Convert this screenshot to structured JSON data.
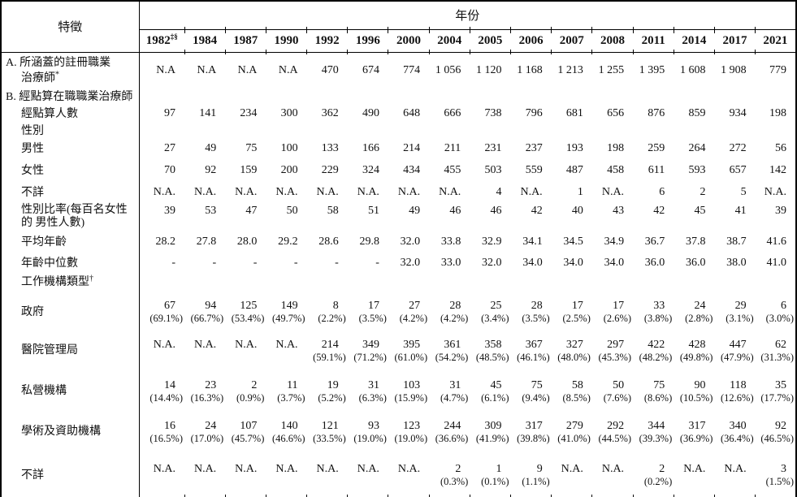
{
  "colors": {
    "text": "#111111",
    "border": "#000000",
    "background": "#ffffff"
  },
  "header": {
    "characteristic_label": "特徵",
    "year_label": "年份",
    "years": [
      {
        "text": "1982",
        "sup": "‡§"
      },
      {
        "text": "1984"
      },
      {
        "text": "1987"
      },
      {
        "text": "1990"
      },
      {
        "text": "1992"
      },
      {
        "text": "1996"
      },
      {
        "text": "2000"
      },
      {
        "text": "2004"
      },
      {
        "text": "2005"
      },
      {
        "text": "2006"
      },
      {
        "text": "2007"
      },
      {
        "text": "2008"
      },
      {
        "text": "2011"
      },
      {
        "text": "2014"
      },
      {
        "text": "2017"
      },
      {
        "text": "2021"
      }
    ]
  },
  "rows": [
    {
      "id": "registered-ot",
      "kind": "middle",
      "label_lines": [
        {
          "text": "A. 所涵蓋的註冊職業",
          "indent": false
        },
        {
          "text": "治療師",
          "sup": "*",
          "indent": true
        }
      ],
      "values": [
        "N.A",
        "N.A",
        "N.A",
        "N.A",
        "470",
        "674",
        "774",
        "1 056",
        "1 120",
        "1 168",
        "1 213",
        "1 255",
        "1 395",
        "1 608",
        "1 908",
        "779"
      ]
    },
    {
      "id": "enumerated-ot-section",
      "kind": "section",
      "label_lines": [
        {
          "text": "B. 經點算在職職業治療師",
          "indent": false
        }
      ]
    },
    {
      "id": "enumerated-count",
      "kind": "plain",
      "label_lines": [
        {
          "text": "經點算人數",
          "indent": true
        }
      ],
      "values": [
        "97",
        "141",
        "234",
        "300",
        "362",
        "490",
        "648",
        "666",
        "738",
        "796",
        "681",
        "656",
        "876",
        "859",
        "934",
        "198"
      ]
    },
    {
      "id": "sex-section",
      "kind": "section",
      "label_lines": [
        {
          "text": "性別",
          "indent": true
        }
      ]
    },
    {
      "id": "male",
      "kind": "plain",
      "label_lines": [
        {
          "text": "男性",
          "indent": true
        }
      ],
      "values": [
        "27",
        "49",
        "75",
        "100",
        "133",
        "166",
        "214",
        "211",
        "231",
        "237",
        "193",
        "198",
        "259",
        "264",
        "272",
        "56"
      ]
    },
    {
      "id": "female",
      "kind": "plain",
      "label_lines": [
        {
          "text": "女性",
          "indent": true
        }
      ],
      "values": [
        "70",
        "92",
        "159",
        "200",
        "229",
        "324",
        "434",
        "455",
        "503",
        "559",
        "487",
        "458",
        "611",
        "593",
        "657",
        "142"
      ]
    },
    {
      "id": "sex-unknown",
      "kind": "plain",
      "label_lines": [
        {
          "text": "不詳",
          "indent": true
        }
      ],
      "values": [
        "N.A.",
        "N.A.",
        "N.A.",
        "N.A.",
        "N.A.",
        "N.A.",
        "N.A.",
        "N.A.",
        "4",
        "N.A.",
        "1",
        "N.A.",
        "6",
        "2",
        "5",
        "N.A."
      ]
    },
    {
      "id": "sex-ratio",
      "kind": "plain",
      "tight": true,
      "label_lines": [
        {
          "text": "性別比率(每百名女性",
          "indent": true
        },
        {
          "text": "的 男性人數)",
          "indent": true
        }
      ],
      "values": [
        "39",
        "53",
        "47",
        "50",
        "58",
        "51",
        "49",
        "46",
        "46",
        "42",
        "40",
        "43",
        "42",
        "45",
        "41",
        "39"
      ]
    },
    {
      "id": "mean-age",
      "kind": "plain",
      "label_lines": [
        {
          "text": "平均年齡",
          "indent": true
        }
      ],
      "values": [
        "28.2",
        "27.8",
        "28.0",
        "29.2",
        "28.6",
        "29.8",
        "32.0",
        "33.8",
        "32.9",
        "34.1",
        "34.5",
        "34.9",
        "36.7",
        "37.8",
        "38.7",
        "41.6"
      ]
    },
    {
      "id": "median-age",
      "kind": "plain",
      "label_lines": [
        {
          "text": "年齡中位數",
          "indent": true
        }
      ],
      "values": [
        "-",
        "-",
        "-",
        "-",
        "-",
        "-",
        "32.0",
        "33.0",
        "32.0",
        "34.0",
        "34.0",
        "34.0",
        "36.0",
        "36.0",
        "38.0",
        "41.0"
      ]
    },
    {
      "id": "org-type-section",
      "kind": "section",
      "label_lines": [
        {
          "text": "工作機構類型",
          "sup": "†",
          "indent": true
        }
      ]
    },
    {
      "id": "government",
      "kind": "pct",
      "label_lines": [
        {
          "text": "政府",
          "indent": true
        }
      ],
      "values": [
        {
          "n": "67",
          "p": "(69.1%)"
        },
        {
          "n": "94",
          "p": "(66.7%)"
        },
        {
          "n": "125",
          "p": "(53.4%)"
        },
        {
          "n": "149",
          "p": "(49.7%)"
        },
        {
          "n": "8",
          "p": "(2.2%)"
        },
        {
          "n": "17",
          "p": "(3.5%)"
        },
        {
          "n": "27",
          "p": "(4.2%)"
        },
        {
          "n": "28",
          "p": "(4.2%)"
        },
        {
          "n": "25",
          "p": "(3.4%)"
        },
        {
          "n": "28",
          "p": "(3.5%)"
        },
        {
          "n": "17",
          "p": "(2.5%)"
        },
        {
          "n": "17",
          "p": "(2.6%)"
        },
        {
          "n": "33",
          "p": "(3.8%)"
        },
        {
          "n": "24",
          "p": "(2.8%)"
        },
        {
          "n": "29",
          "p": "(3.1%)"
        },
        {
          "n": "6",
          "p": "(3.0%)"
        }
      ]
    },
    {
      "id": "hospital-authority",
      "kind": "pct",
      "label_lines": [
        {
          "text": "醫院管理局",
          "indent": true
        }
      ],
      "values": [
        {
          "n": "N.A."
        },
        {
          "n": "N.A."
        },
        {
          "n": "N.A."
        },
        {
          "n": "N.A."
        },
        {
          "n": "214",
          "p": "(59.1%)"
        },
        {
          "n": "349",
          "p": "(71.2%)"
        },
        {
          "n": "395",
          "p": "(61.0%)"
        },
        {
          "n": "361",
          "p": "(54.2%)"
        },
        {
          "n": "358",
          "p": "(48.5%)"
        },
        {
          "n": "367",
          "p": "(46.1%)"
        },
        {
          "n": "327",
          "p": "(48.0%)"
        },
        {
          "n": "297",
          "p": "(45.3%)"
        },
        {
          "n": "422",
          "p": "(48.2%)"
        },
        {
          "n": "428",
          "p": "(49.8%)"
        },
        {
          "n": "447",
          "p": "(47.9%)"
        },
        {
          "n": "62",
          "p": "(31.3%)"
        }
      ]
    },
    {
      "id": "private-sector",
      "kind": "pct",
      "label_lines": [
        {
          "text": "私營機構",
          "indent": true
        }
      ],
      "values": [
        {
          "n": "14",
          "p": "(14.4%)"
        },
        {
          "n": "23",
          "p": "(16.3%)"
        },
        {
          "n": "2",
          "p": "(0.9%)"
        },
        {
          "n": "11",
          "p": "(3.7%)"
        },
        {
          "n": "19",
          "p": "(5.2%)"
        },
        {
          "n": "31",
          "p": "(6.3%)"
        },
        {
          "n": "103",
          "p": "(15.9%)"
        },
        {
          "n": "31",
          "p": "(4.7%)"
        },
        {
          "n": "45",
          "p": "(6.1%)"
        },
        {
          "n": "75",
          "p": "(9.4%)"
        },
        {
          "n": "58",
          "p": "(8.5%)"
        },
        {
          "n": "50",
          "p": "(7.6%)"
        },
        {
          "n": "75",
          "p": "(8.6%)"
        },
        {
          "n": "90",
          "p": "(10.5%)"
        },
        {
          "n": "118",
          "p": "(12.6%)"
        },
        {
          "n": "35",
          "p": "(17.7%)"
        }
      ]
    },
    {
      "id": "academic-subvented",
      "kind": "pct",
      "label_lines": [
        {
          "text": "學術及資助機構",
          "indent": true
        }
      ],
      "values": [
        {
          "n": "16",
          "p": "(16.5%)"
        },
        {
          "n": "24",
          "p": "(17.0%)"
        },
        {
          "n": "107",
          "p": "(45.7%)"
        },
        {
          "n": "140",
          "p": "(46.6%)"
        },
        {
          "n": "121",
          "p": "(33.5%)"
        },
        {
          "n": "93",
          "p": "(19.0%)"
        },
        {
          "n": "123",
          "p": "(19.0%)"
        },
        {
          "n": "244",
          "p": "(36.6%)"
        },
        {
          "n": "309",
          "p": "(41.9%)"
        },
        {
          "n": "317",
          "p": "(39.8%)"
        },
        {
          "n": "279",
          "p": "(41.0%)"
        },
        {
          "n": "292",
          "p": "(44.5%)"
        },
        {
          "n": "344",
          "p": "(39.3%)"
        },
        {
          "n": "317",
          "p": "(36.9%)"
        },
        {
          "n": "340",
          "p": "(36.4%)"
        },
        {
          "n": "92",
          "p": "(46.5%)"
        }
      ]
    },
    {
      "id": "org-unknown",
      "kind": "pct",
      "label_lines": [
        {
          "text": "不詳",
          "indent": true
        }
      ],
      "values": [
        {
          "n": "N.A."
        },
        {
          "n": "N.A."
        },
        {
          "n": "N.A."
        },
        {
          "n": "N.A."
        },
        {
          "n": "N.A."
        },
        {
          "n": "N.A."
        },
        {
          "n": "N.A."
        },
        {
          "n": "2",
          "p": "(0.3%)"
        },
        {
          "n": "1",
          "p": "(0.1%)"
        },
        {
          "n": "9",
          "p": "(1.1%)"
        },
        {
          "n": "N.A."
        },
        {
          "n": "N.A."
        },
        {
          "n": "2",
          "p": "(0.2%)"
        },
        {
          "n": "N.A."
        },
        {
          "n": "N.A."
        },
        {
          "n": "3",
          "p": "(1.5%)"
        }
      ]
    }
  ]
}
